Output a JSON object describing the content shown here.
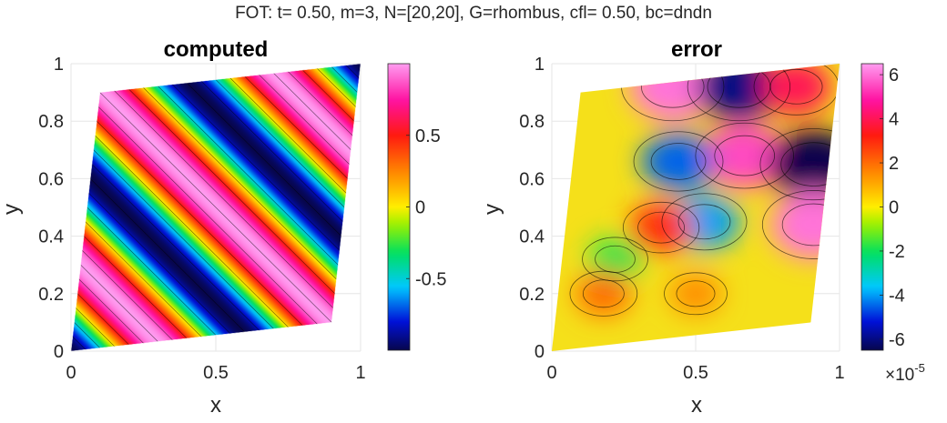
{
  "suptitle": "FOT: t= 0.50, m=3, N=[20,20], G=rhombus, cfl= 0.50, bc=dndn",
  "chart_data": [
    {
      "type": "heatmap",
      "title": "computed",
      "xlabel": "x",
      "ylabel": "y",
      "xlim": [
        0,
        1
      ],
      "ylim": [
        0,
        1
      ],
      "xticks": [
        "0",
        "0.5",
        "1"
      ],
      "yticks": [
        "0",
        "0.2",
        "0.4",
        "0.6",
        "0.8",
        "1"
      ],
      "domain": "rhombus",
      "domain_vertices": [
        [
          0,
          0
        ],
        [
          0.9,
          0.1
        ],
        [
          1,
          1
        ],
        [
          0.1,
          0.9
        ]
      ],
      "field": "sin(m*pi*(x+y)) striped diagonal waves",
      "colorbar": {
        "range": [
          -1,
          1
        ],
        "ticks": [
          "-0.5",
          "0",
          "0.5"
        ],
        "colormap": "jet-hsv"
      },
      "contour_lines": true
    },
    {
      "type": "heatmap",
      "title": "error",
      "xlabel": "x",
      "ylabel": "y",
      "xlim": [
        0,
        1
      ],
      "ylim": [
        0,
        1
      ],
      "xticks": [
        "0",
        "0.5",
        "1"
      ],
      "yticks": [
        "0",
        "0.2",
        "0.4",
        "0.6",
        "0.8",
        "1"
      ],
      "domain": "rhombus",
      "domain_vertices": [
        [
          0,
          0
        ],
        [
          0.9,
          0.1
        ],
        [
          1,
          1
        ],
        [
          0.1,
          0.9
        ]
      ],
      "colorbar": {
        "range": [
          -6.5e-05,
          6.5e-05
        ],
        "ticks": [
          "-6",
          "-4",
          "-2",
          "0",
          "2",
          "4",
          "6"
        ],
        "multiplier": "×10",
        "exponent": "-5",
        "colormap": "jet-hsv"
      },
      "features": [
        {
          "x": 0.42,
          "y": 0.92,
          "value": 6.0
        },
        {
          "x": 0.65,
          "y": 0.92,
          "value": -6.0
        },
        {
          "x": 0.85,
          "y": 0.92,
          "value": 4.0
        },
        {
          "x": 0.67,
          "y": 0.68,
          "value": 5.5
        },
        {
          "x": 0.44,
          "y": 0.66,
          "value": -4.5
        },
        {
          "x": 0.91,
          "y": 0.65,
          "value": -6.5
        },
        {
          "x": 0.53,
          "y": 0.45,
          "value": -4.0
        },
        {
          "x": 0.91,
          "y": 0.44,
          "value": 6.0
        },
        {
          "x": 0.38,
          "y": 0.43,
          "value": 3.0
        },
        {
          "x": 0.22,
          "y": 0.32,
          "value": -1.8
        },
        {
          "x": 0.18,
          "y": 0.2,
          "value": 2.0
        },
        {
          "x": 0.5,
          "y": 0.2,
          "value": 1.5
        }
      ],
      "contour_lines": true
    }
  ]
}
